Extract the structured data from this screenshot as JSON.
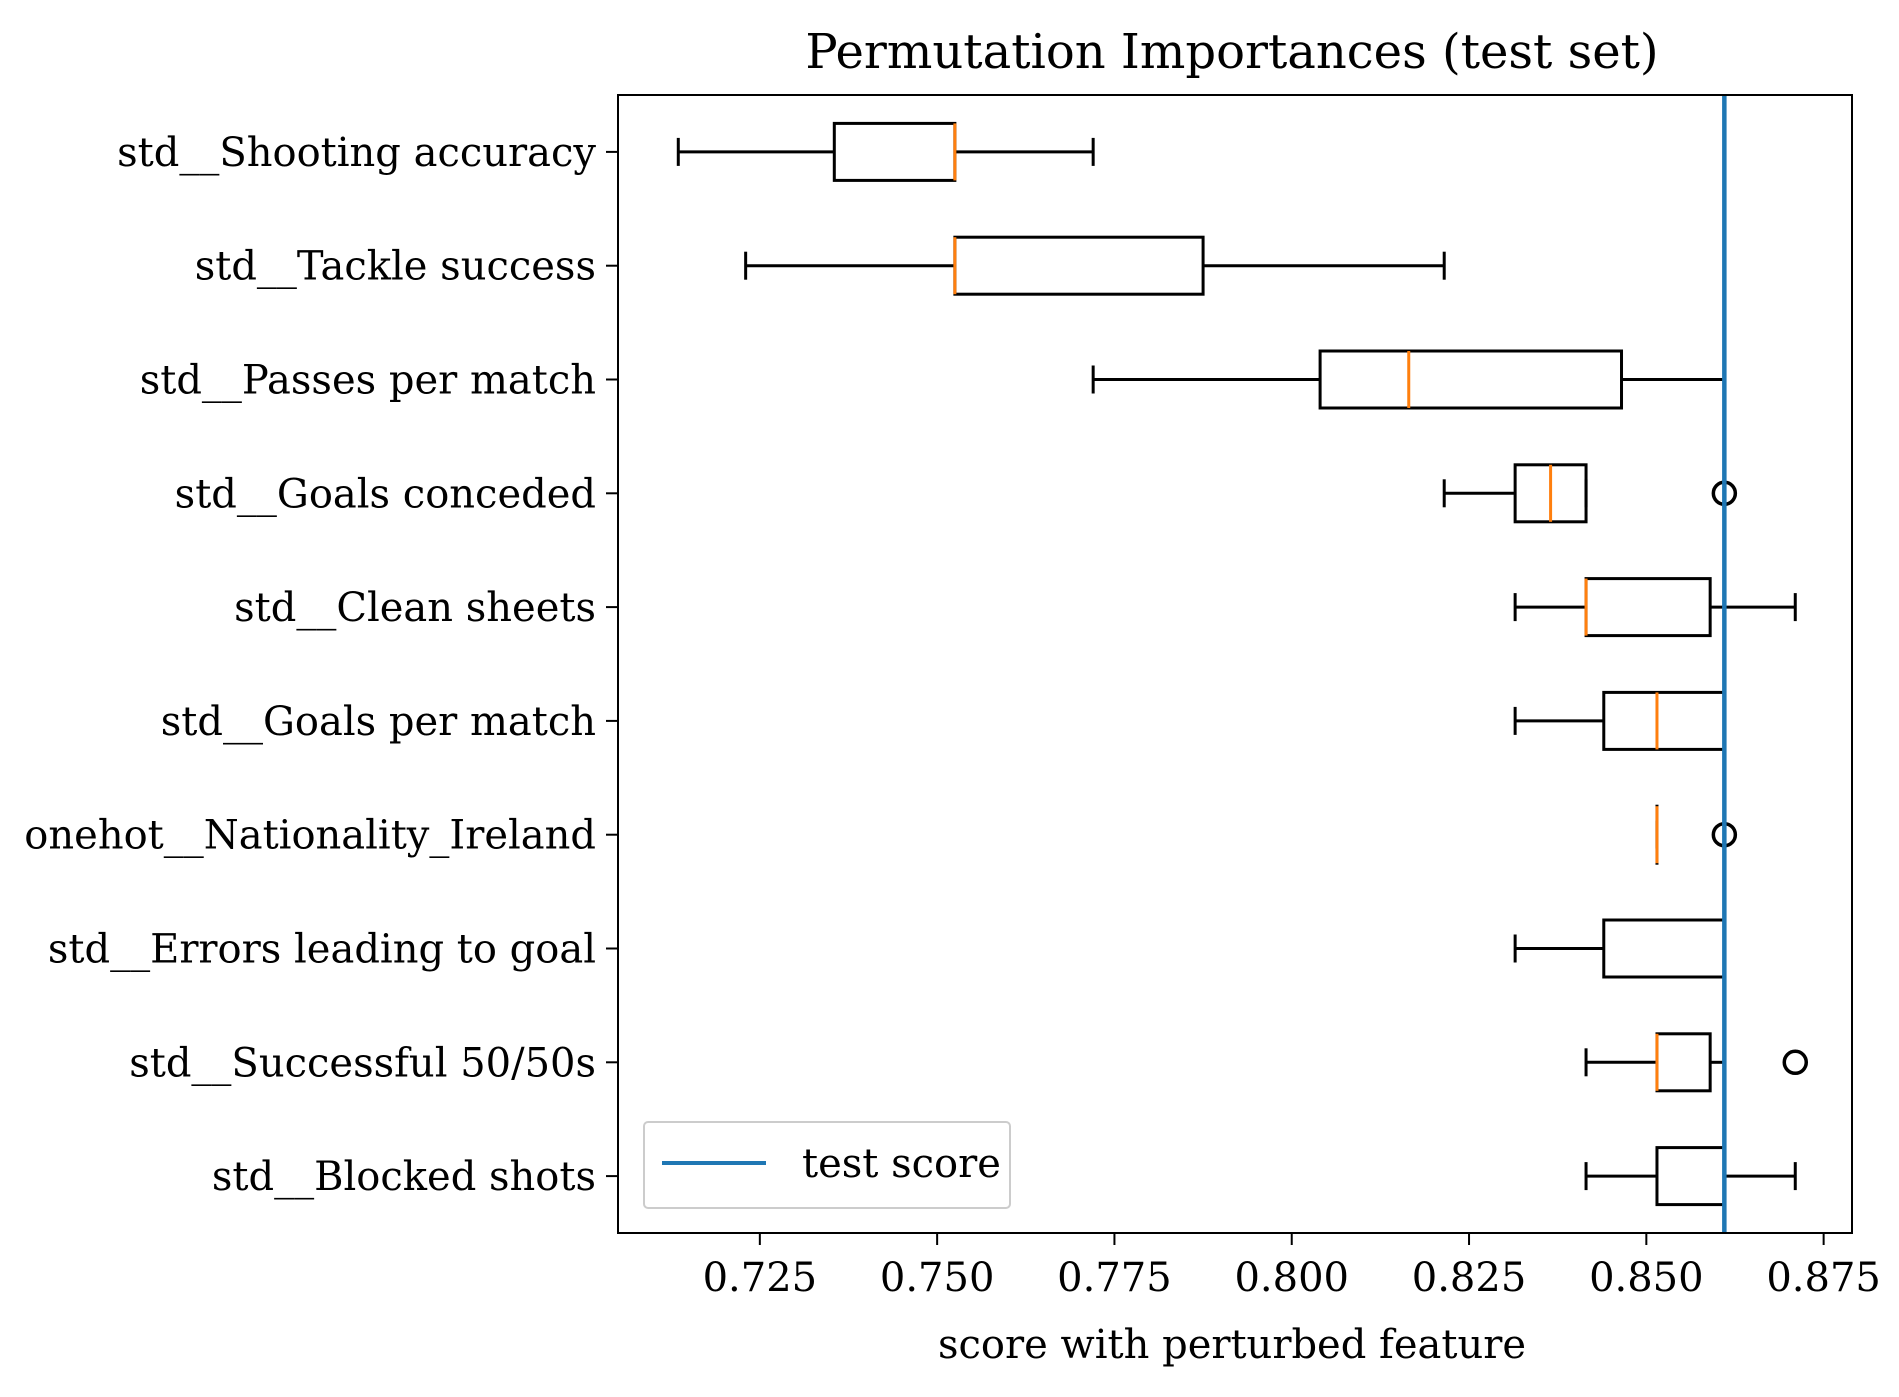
{
  "chart_data": {
    "type": "boxplot",
    "orientation": "horizontal",
    "title": "Permutation Importances (test set)",
    "xlabel": "score with perturbed feature",
    "ylabel": "",
    "xlim": [
      0.705,
      0.879
    ],
    "xticks": [
      0.725,
      0.75,
      0.775,
      0.8,
      0.825,
      0.85,
      0.875
    ],
    "xtick_labels": [
      "0.725",
      "0.750",
      "0.775",
      "0.800",
      "0.825",
      "0.850",
      "0.875"
    ],
    "grid": false,
    "categories": [
      "std__Shooting accuracy",
      "std__Tackle success",
      "std__Passes per match",
      "std__Goals conceded",
      "std__Clean sheets",
      "std__Goals per match",
      "onehot__Nationality_Ireland",
      "std__Errors leading to goal",
      "std__Successful 50/50s",
      "std__Blocked shots"
    ],
    "boxes": [
      {
        "whisker_low": 0.7135,
        "q1": 0.7355,
        "median": 0.7525,
        "q3": 0.7525,
        "whisker_high": 0.772,
        "outliers": []
      },
      {
        "whisker_low": 0.723,
        "q1": 0.7525,
        "median": 0.7525,
        "q3": 0.7875,
        "whisker_high": 0.8215,
        "outliers": []
      },
      {
        "whisker_low": 0.772,
        "q1": 0.804,
        "median": 0.8165,
        "q3": 0.8465,
        "whisker_high": 0.861,
        "outliers": []
      },
      {
        "whisker_low": 0.8215,
        "q1": 0.8315,
        "median": 0.8365,
        "q3": 0.8415,
        "whisker_high": 0.8415,
        "outliers": [
          0.861
        ]
      },
      {
        "whisker_low": 0.8315,
        "q1": 0.8415,
        "median": 0.8415,
        "q3": 0.859,
        "whisker_high": 0.871,
        "outliers": []
      },
      {
        "whisker_low": 0.8315,
        "q1": 0.844,
        "median": 0.8515,
        "q3": 0.861,
        "whisker_high": 0.861,
        "outliers": []
      },
      {
        "whisker_low": 0.8515,
        "q1": 0.8515,
        "median": 0.8515,
        "q3": 0.8515,
        "whisker_high": 0.8515,
        "outliers": [
          0.861
        ]
      },
      {
        "whisker_low": 0.8315,
        "q1": 0.844,
        "median": 0.861,
        "q3": 0.861,
        "whisker_high": 0.861,
        "outliers": []
      },
      {
        "whisker_low": 0.8415,
        "q1": 0.8515,
        "median": 0.8515,
        "q3": 0.859,
        "whisker_high": 0.861,
        "outliers": [
          0.871
        ]
      },
      {
        "whisker_low": 0.8415,
        "q1": 0.8515,
        "median": 0.861,
        "q3": 0.861,
        "whisker_high": 0.871,
        "outliers": []
      }
    ],
    "reference_line": {
      "name": "test score",
      "x": 0.861
    },
    "legend": {
      "placement": "lower-left",
      "entries": [
        "test score"
      ]
    },
    "colors": {
      "box": "#000000",
      "median": "#ff7f0e",
      "reference_line": "#1f77b4"
    }
  }
}
